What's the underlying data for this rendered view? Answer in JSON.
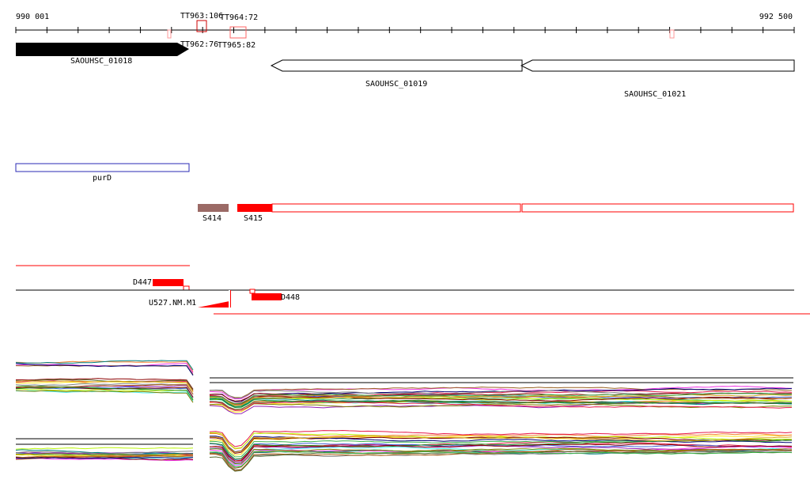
{
  "coordinates": {
    "start": "990 001",
    "end": "992 500"
  },
  "terminators": [
    {
      "label": "TT963:106"
    },
    {
      "label": "TT964:72"
    },
    {
      "label": "TT962:76"
    },
    {
      "label": "TT965:82"
    }
  ],
  "genes": [
    {
      "label": "SAOUHSC_01018",
      "strand": "+",
      "style": "filled"
    },
    {
      "label": "SAOUHSC_01019",
      "strand": "-",
      "style": "outline"
    },
    {
      "label": "SAOUHSC_01021",
      "strand": "-",
      "style": "outline"
    }
  ],
  "operon": {
    "label": "purD"
  },
  "segments": [
    {
      "label": "S414",
      "color": "#9b6a66"
    },
    {
      "label": "S415",
      "color": "#ff0000"
    }
  ],
  "features": [
    {
      "label": "D447",
      "color": "#ff0000"
    },
    {
      "label": "U527.NM.M1",
      "color": "#ff0000"
    },
    {
      "label": "D448",
      "color": "#ff0000"
    }
  ],
  "colors": {
    "axis": "#000000",
    "gene_fill": "#000000",
    "operon_outline": "#2a2ab5",
    "feature": "#ff0000",
    "background": "#ffffff"
  }
}
